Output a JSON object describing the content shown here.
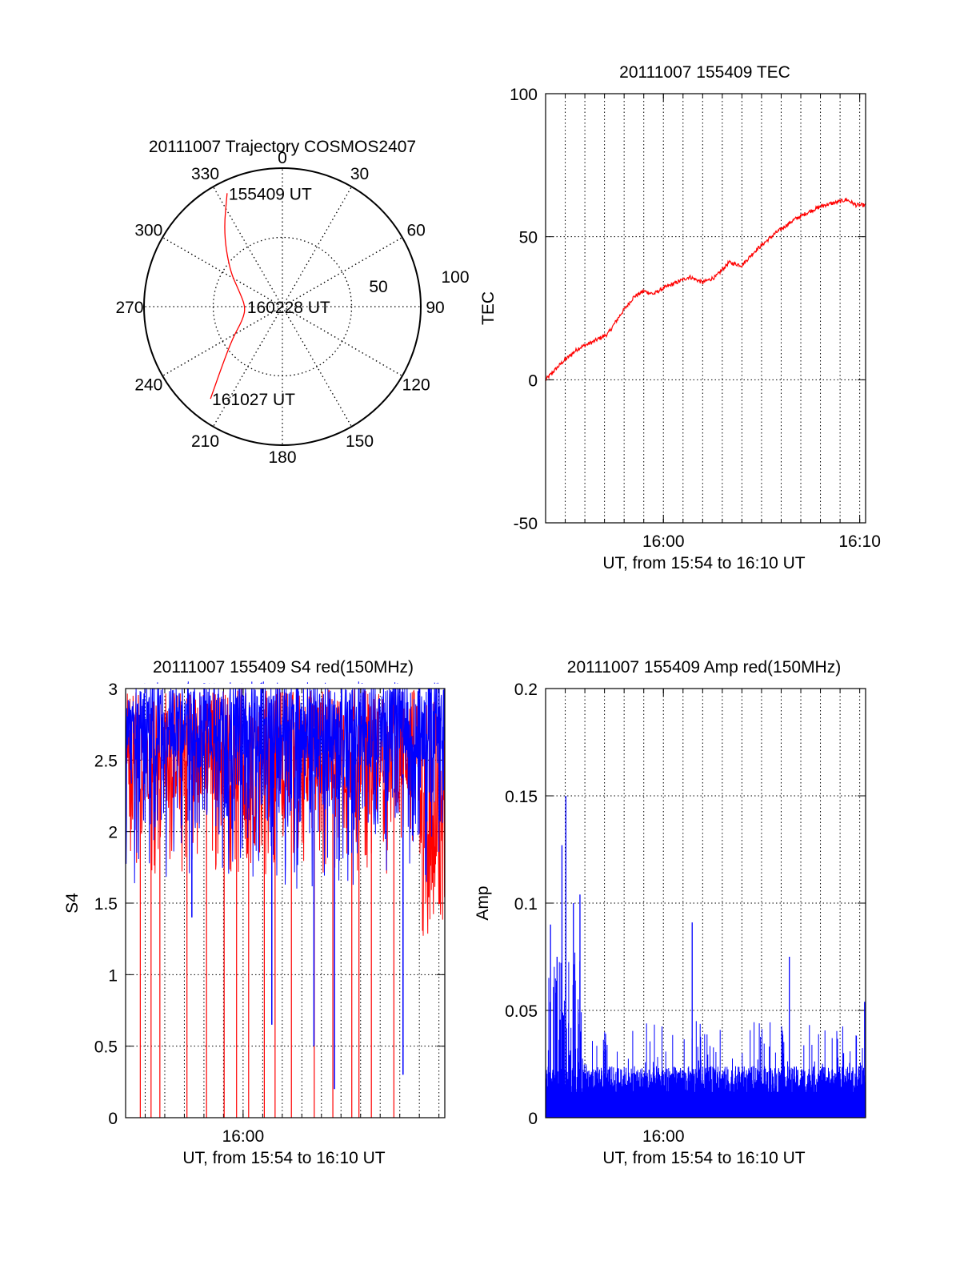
{
  "colors": {
    "red": "#ff0000",
    "blue": "#0000ff",
    "axis": "#000000",
    "grid": "#000000"
  },
  "chart_data": [
    {
      "id": "trajectory",
      "type": "polar",
      "title": "20111007 Trajectory COSMOS2407",
      "angle_ticks": [
        "0",
        "30",
        "60",
        "90",
        "120",
        "150",
        "180",
        "210",
        "240",
        "270",
        "300",
        "330"
      ],
      "radial_ticks": [
        "50",
        "100"
      ],
      "elevation_range": [
        0,
        90
      ],
      "grid": true,
      "series": [
        {
          "color": "red",
          "points": [
            {
              "az": 334,
              "el": 8
            },
            {
              "az": 322,
              "el": 28
            },
            {
              "az": 305,
              "el": 48
            },
            {
              "az": 290,
              "el": 60
            },
            {
              "az": 270,
              "el": 66
            },
            {
              "az": 252,
              "el": 63
            },
            {
              "az": 238,
              "el": 52
            },
            {
              "az": 226,
              "el": 36
            },
            {
              "az": 218,
              "el": 14
            }
          ]
        }
      ],
      "annotations": [
        {
          "text": "155409 UT",
          "az": 334,
          "el": 8
        },
        {
          "text": "160228 UT",
          "az": 270,
          "el": 66
        },
        {
          "text": "161027 UT",
          "az": 218,
          "el": 14
        }
      ]
    },
    {
      "id": "tec",
      "type": "line",
      "title": "20111007 155409 TEC",
      "xlabel": "UT, from 15:54 to 16:10 UT",
      "ylabel": "TEC",
      "ylim": [
        -50,
        100
      ],
      "y_ticks": [
        "100",
        "50",
        "0",
        "-50"
      ],
      "x_ticks": [
        {
          "t": 360,
          "label": "16:00"
        },
        {
          "t": 960,
          "label": "16:10"
        }
      ],
      "x_range_s": [
        0,
        978
      ],
      "grid": true,
      "series": [
        {
          "color": "red",
          "x": [
            0,
            50,
            100,
            140,
            190,
            230,
            270,
            300,
            330,
            360,
            400,
            440,
            480,
            520,
            560,
            600,
            640,
            700,
            760,
            810,
            850,
            890,
            920,
            950,
            978
          ],
          "y": [
            0,
            6,
            11,
            13,
            16,
            23,
            29,
            31,
            30,
            32,
            34,
            36,
            34,
            36,
            41,
            40,
            45,
            51,
            56,
            59,
            61,
            62,
            63,
            61,
            61
          ]
        }
      ]
    },
    {
      "id": "s4",
      "type": "line",
      "title": "20111007 155409 S4 red(150MHz)",
      "xlabel": "UT, from 15:54 to 16:10 UT",
      "ylabel": "S4",
      "ylim": [
        0,
        3
      ],
      "y_ticks": [
        "3",
        "2.5",
        "2",
        "1.5",
        "1",
        "0.5",
        "0"
      ],
      "x_ticks": [
        {
          "t": 360,
          "label": "16:00"
        }
      ],
      "x_range_s": [
        0,
        978
      ],
      "grid": true,
      "series": [
        {
          "color": "red",
          "note": "dense noisy trace, mostly 2.0–3.0 with frequent drops to 0",
          "drop_times_s": [
            45,
            78,
            105,
            188,
            248,
            302,
            340,
            377,
            425,
            458,
            508,
            578,
            635,
            693,
            715,
            753,
            822
          ]
        },
        {
          "color": "blue",
          "note": "dense noisy trace, mostly 2.3–3.0 with dips",
          "dip_times_s": [
            [
              203,
              1.4
            ],
            [
              448,
              0.65
            ],
            [
              577,
              0.5
            ],
            [
              640,
              0.2
            ],
            [
              850,
              0.3
            ]
          ]
        }
      ]
    },
    {
      "id": "amp",
      "type": "line",
      "title": "20111007 155409 Amp red(150MHz)",
      "xlabel": "UT, from 15:54 to 16:10 UT",
      "ylabel": "Amp",
      "ylim": [
        0,
        0.2
      ],
      "y_ticks": [
        "0.2",
        "0.15",
        "0.1",
        "0.05",
        "0"
      ],
      "x_ticks": [
        {
          "t": 360,
          "label": "16:00"
        }
      ],
      "x_range_s": [
        0,
        978
      ],
      "grid": true,
      "series": [
        {
          "color": "blue",
          "note": "dense noisy amplitude, baseline 0–0.02 with spikes",
          "peaks": [
            {
              "t": 15,
              "v": 0.09
            },
            {
              "t": 35,
              "v": 0.075
            },
            {
              "t": 50,
              "v": 0.127
            },
            {
              "t": 62,
              "v": 0.15
            },
            {
              "t": 85,
              "v": 0.1
            },
            {
              "t": 105,
              "v": 0.104
            },
            {
              "t": 448,
              "v": 0.091
            },
            {
              "t": 745,
              "v": 0.075
            },
            {
              "t": 975,
              "v": 0.054
            }
          ]
        }
      ]
    }
  ]
}
